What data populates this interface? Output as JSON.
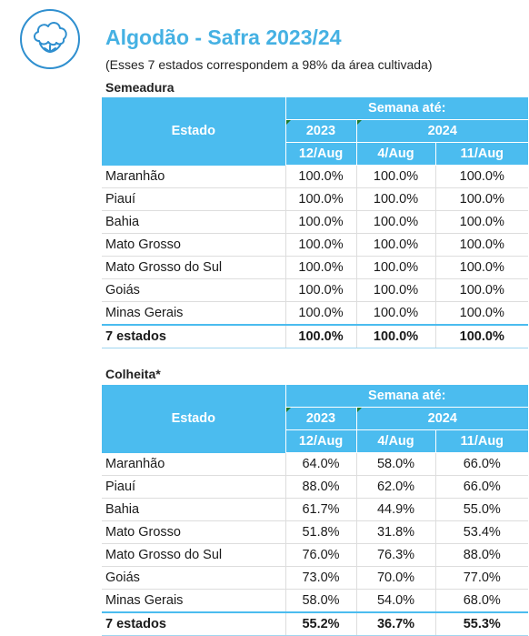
{
  "header": {
    "title": "Algodão - Safra 2023/24",
    "subtitle": "(Esses 7 estados correspondem a 98% da área cultivada)",
    "logo_icon": "cotton-boll-icon"
  },
  "colors": {
    "accent": "#4bbcef",
    "title": "#45b1e3",
    "logo": "#2f8fcf"
  },
  "columns": {
    "state": "Estado",
    "week": "Semana até:",
    "year_a": "2023",
    "year_b": "2024",
    "date_a": "12/Aug",
    "date_b": "4/Aug",
    "date_c": "11/Aug"
  },
  "semeadura": {
    "title": "Semeadura",
    "rows": [
      [
        "Maranhão",
        "100.0%",
        "100.0%",
        "100.0%"
      ],
      [
        "Piauí",
        "100.0%",
        "100.0%",
        "100.0%"
      ],
      [
        "Bahia",
        "100.0%",
        "100.0%",
        "100.0%"
      ],
      [
        "Mato Grosso",
        "100.0%",
        "100.0%",
        "100.0%"
      ],
      [
        "Mato Grosso do Sul",
        "100.0%",
        "100.0%",
        "100.0%"
      ],
      [
        "Goiás",
        "100.0%",
        "100.0%",
        "100.0%"
      ],
      [
        "Minas Gerais",
        "100.0%",
        "100.0%",
        "100.0%"
      ]
    ],
    "total": [
      "7 estados",
      "100.0%",
      "100.0%",
      "100.0%"
    ]
  },
  "colheita": {
    "title": "Colheita*",
    "rows": [
      [
        "Maranhão",
        "64.0%",
        "58.0%",
        "66.0%"
      ],
      [
        "Piauí",
        "88.0%",
        "62.0%",
        "66.0%"
      ],
      [
        "Bahia",
        "61.7%",
        "44.9%",
        "55.0%"
      ],
      [
        "Mato Grosso",
        "51.8%",
        "31.8%",
        "53.4%"
      ],
      [
        "Mato Grosso do Sul",
        "76.0%",
        "76.3%",
        "88.0%"
      ],
      [
        "Goiás",
        "73.0%",
        "70.0%",
        "77.0%"
      ],
      [
        "Minas Gerais",
        "58.0%",
        "54.0%",
        "68.0%"
      ]
    ],
    "total": [
      "7 estados",
      "55.2%",
      "36.7%",
      "55.3%"
    ]
  }
}
